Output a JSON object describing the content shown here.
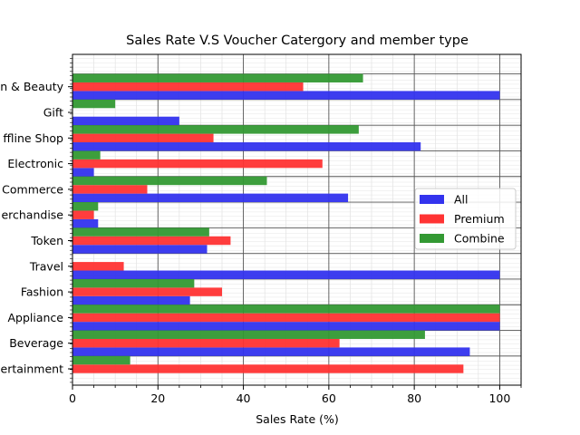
{
  "chart_data": {
    "type": "bar",
    "orientation": "horizontal",
    "title": "Sales Rate V.S Voucher Catergory and member type",
    "xlabel": "Sales Rate (%)",
    "ylabel": "",
    "xlim": [
      0,
      105
    ],
    "xticks": [
      0,
      20,
      40,
      60,
      80,
      100
    ],
    "grid": true,
    "legend_position": "center-right",
    "categories": [
      "Entertainment",
      "Beverage",
      "Appliance",
      "Fashion",
      "Travel",
      "Token",
      "Merchandise",
      "E-Commerce",
      "Electronic",
      "Offline Shop",
      "Gift",
      "Health & Beauty"
    ],
    "category_labels_visible": [
      "ertainment",
      "Beverage",
      "Appliance",
      "Fashion",
      "Travel",
      "Token",
      "erchandise",
      "Commerce",
      "Electronic",
      "ffline Shop",
      "Gift",
      "n & Beauty"
    ],
    "series": [
      {
        "name": "All",
        "color": "#3333ee",
        "values": [
          0,
          93,
          100,
          27.5,
          100,
          31.5,
          6,
          64.5,
          5,
          81.5,
          25,
          100
        ]
      },
      {
        "name": "Premium",
        "color": "#ff3333",
        "values": [
          91.5,
          62.5,
          100,
          35,
          12,
          37,
          5,
          17.5,
          58.5,
          33,
          0,
          54
        ]
      },
      {
        "name": "Combine",
        "color": "#339933",
        "values": [
          13.5,
          82.5,
          100,
          28.5,
          0,
          32,
          6,
          45.5,
          6.5,
          67,
          10,
          68
        ]
      }
    ]
  }
}
